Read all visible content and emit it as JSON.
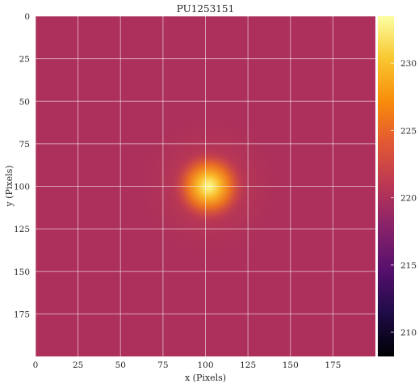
{
  "chart_data": {
    "type": "heatmap",
    "title": "PU1253151",
    "xlabel": "x (Pixels)",
    "ylabel": "y (Pixels)",
    "xlim": [
      0,
      200
    ],
    "ylim": [
      200,
      0
    ],
    "xticks": [
      0,
      25,
      50,
      75,
      100,
      125,
      150,
      175
    ],
    "yticks": [
      0,
      25,
      50,
      75,
      100,
      125,
      150,
      175
    ],
    "grid": true,
    "colormap": "inferno",
    "colorbar": {
      "vmin": 208.2,
      "vmax": 233.5,
      "ticks": [
        210,
        215,
        220,
        225,
        230
      ]
    },
    "source": {
      "center_x": 102,
      "center_y": 100,
      "background": 220.0,
      "peak": 233.0
    }
  }
}
